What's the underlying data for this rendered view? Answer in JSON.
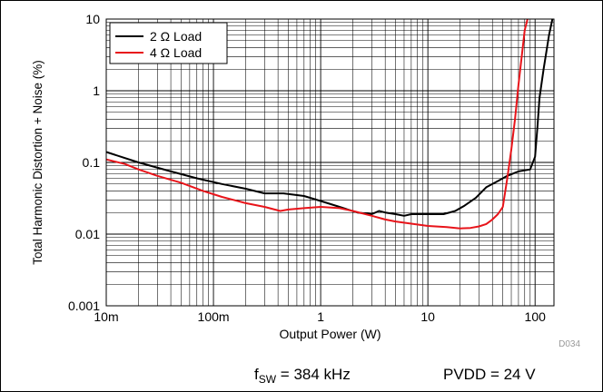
{
  "chart_data": {
    "type": "line",
    "xlabel": "Output Power (W)",
    "ylabel": "Total Harmonic Distortion + Noise (%)",
    "xscale": "log",
    "yscale": "log",
    "xlim": [
      0.01,
      150
    ],
    "ylim": [
      0.001,
      10
    ],
    "grid": true,
    "legend_position": "top-left",
    "x_ticks": [
      {
        "value": 0.01,
        "label": "10m"
      },
      {
        "value": 0.1,
        "label": "100m"
      },
      {
        "value": 1,
        "label": "1"
      },
      {
        "value": 10,
        "label": "10"
      },
      {
        "value": 100,
        "label": "100"
      }
    ],
    "y_ticks": [
      {
        "value": 0.001,
        "label": "0.001"
      },
      {
        "value": 0.01,
        "label": "0.01"
      },
      {
        "value": 0.1,
        "label": "0.1"
      },
      {
        "value": 1,
        "label": "1"
      },
      {
        "value": 10,
        "label": "10"
      }
    ],
    "series": [
      {
        "name": "2 Ω Load",
        "color": "#000000",
        "x": [
          0.01,
          0.02,
          0.04,
          0.07,
          0.12,
          0.2,
          0.3,
          0.45,
          0.7,
          1,
          1.5,
          2.2,
          3,
          3.5,
          4,
          5,
          6,
          7,
          8,
          10,
          14,
          18,
          22,
          28,
          35,
          45,
          55,
          70,
          90,
          100,
          105,
          110,
          120,
          135,
          145
        ],
        "y": [
          0.14,
          0.1,
          0.075,
          0.06,
          0.05,
          0.043,
          0.037,
          0.037,
          0.034,
          0.029,
          0.024,
          0.02,
          0.019,
          0.021,
          0.02,
          0.019,
          0.018,
          0.019,
          0.019,
          0.019,
          0.019,
          0.021,
          0.025,
          0.032,
          0.045,
          0.055,
          0.065,
          0.075,
          0.08,
          0.12,
          0.3,
          0.8,
          2,
          6,
          10
        ]
      },
      {
        "name": "4 Ω Load",
        "color": "#e8141a",
        "x": [
          0.01,
          0.015,
          0.02,
          0.03,
          0.05,
          0.08,
          0.12,
          0.2,
          0.3,
          0.42,
          0.5,
          0.7,
          1,
          1.5,
          2,
          3,
          4,
          5,
          7,
          10,
          15,
          20,
          25,
          30,
          35,
          40,
          45,
          50,
          55,
          60,
          65,
          70,
          75,
          80,
          85
        ],
        "y": [
          0.11,
          0.095,
          0.08,
          0.065,
          0.052,
          0.04,
          0.033,
          0.027,
          0.024,
          0.021,
          0.022,
          0.023,
          0.024,
          0.023,
          0.021,
          0.018,
          0.016,
          0.015,
          0.014,
          0.013,
          0.0125,
          0.012,
          0.0122,
          0.0128,
          0.0138,
          0.016,
          0.019,
          0.024,
          0.06,
          0.15,
          0.4,
          1.2,
          3,
          7,
          10
        ]
      }
    ],
    "annotation": "D034"
  },
  "conditions": {
    "fsw_label": "f",
    "fsw_subscript": "SW",
    "fsw_value": " = 384 kHz",
    "pvdd": "PVDD = 24 V"
  }
}
